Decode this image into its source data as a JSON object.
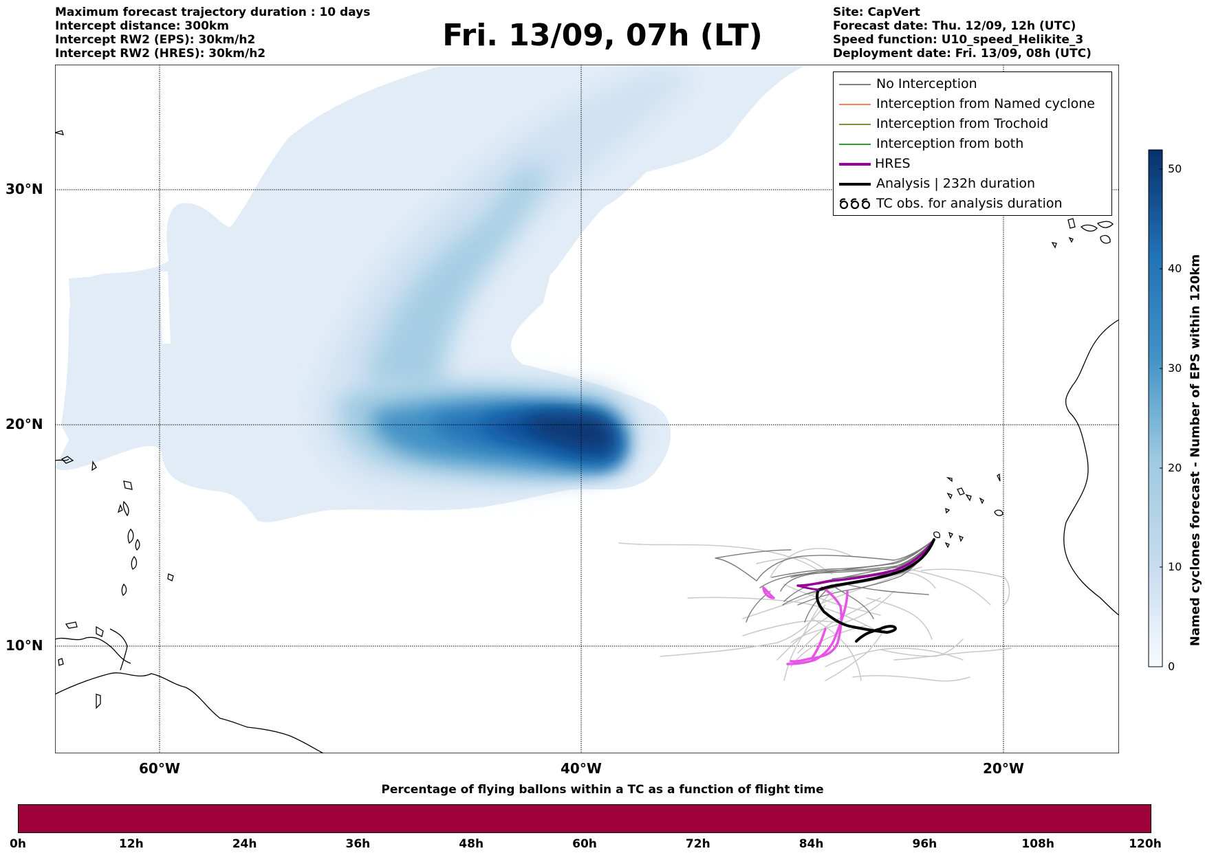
{
  "header": {
    "left": [
      "Maximum forecast trajectory duration : 10 days",
      "Intercept distance: 300km",
      "Intercept RW2 (EPS):  30km/h2",
      "Intercept RW2 (HRES): 30km/h2"
    ],
    "right": [
      "Site: CapVert",
      "Forecast date: Thu. 12/09, 12h (UTC)",
      "Speed function: U10_speed_Helikite_3",
      "Deployment date: Fri. 13/09, 08h (UTC)"
    ]
  },
  "title": "Fri. 13/09, 07h (LT)",
  "map": {
    "lat_labels": [
      "30°N",
      "20°N",
      "10°N"
    ],
    "lon_labels": [
      "60°W",
      "40°W",
      "20°W"
    ],
    "extent": {
      "lon_min": -65,
      "lon_max": -15,
      "lat_min": 5,
      "lat_max": 35
    }
  },
  "legend": [
    {
      "label": "No Interception",
      "color": "#808080",
      "style": "line-thin"
    },
    {
      "label": "Interception from Named cyclone",
      "color": "#ff7f50",
      "style": "line-thin"
    },
    {
      "label": "Interception from Trochoid",
      "color": "#8b8b3a",
      "style": "line-thin"
    },
    {
      "label": "Interception from both",
      "color": "#2ca02c",
      "style": "line-thin"
    },
    {
      "label": "HRES",
      "color": "#990099",
      "style": "line-thick"
    },
    {
      "label": "Analysis | 232h duration",
      "color": "#000000",
      "style": "line-thick"
    },
    {
      "label": "TC obs. for analysis duration",
      "color": "#000000",
      "style": "symbols"
    }
  ],
  "colorbar": {
    "title": "Named cyclones forecast - Number of EPS within 120km",
    "ticks": [
      "50",
      "40",
      "30",
      "20",
      "10",
      "0"
    ],
    "min": 0,
    "max": 52,
    "color_low": "#f7fbff",
    "color_high": "#08306b"
  },
  "bottom": {
    "title": "Percentage of flying ballons within a TC as a function of flight time",
    "bar_color": "#a0003a",
    "ticks": [
      "0h",
      "12h",
      "24h",
      "36h",
      "48h",
      "60h",
      "72h",
      "84h",
      "96h",
      "108h",
      "120h"
    ]
  }
}
